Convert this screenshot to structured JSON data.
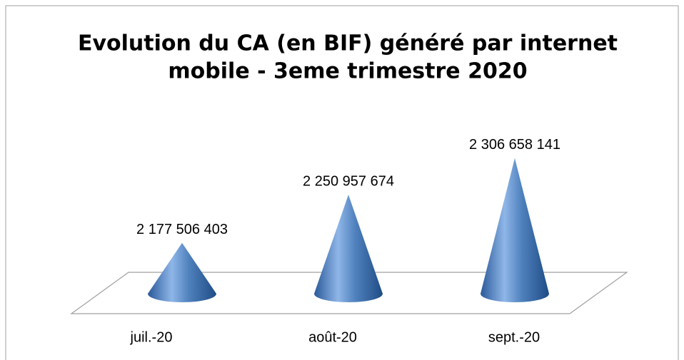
{
  "chart_data": {
    "type": "cone",
    "title": [
      "Evolution du CA (en BIF) généré par internet",
      "mobile - 3eme  trimestre 2020"
    ],
    "categories": [
      "juil.-20",
      "août-20",
      "sept.-20"
    ],
    "values": [
      2177506403,
      2250957674,
      2306658141
    ],
    "value_labels": [
      "2 177 506 403",
      "2 250 957 674",
      "2 306 658 141"
    ],
    "color": "#4f81bd",
    "ylim": [
      2100000000,
      2350000000
    ]
  }
}
